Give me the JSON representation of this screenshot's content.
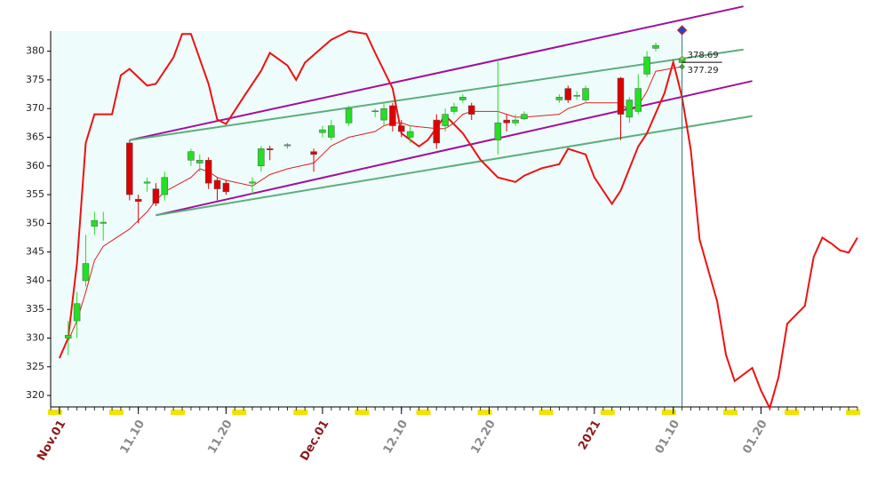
{
  "chart_data": {
    "type": "candlestick",
    "x": [
      "11.02",
      "11.03",
      "11.04",
      "11.05",
      "11.06",
      "11.09",
      "11.10",
      "11.11",
      "11.12",
      "11.13",
      "11.16",
      "11.17",
      "11.18",
      "11.19",
      "11.20",
      "11.23",
      "11.24",
      "11.25",
      "11.27",
      "11.30",
      "12.01",
      "12.02",
      "12.04",
      "12.07",
      "12.08",
      "12.09",
      "12.10",
      "12.11",
      "12.14",
      "12.15",
      "12.16",
      "12.17",
      "12.18",
      "12.21",
      "12.22",
      "12.23",
      "12.24",
      "12.28",
      "12.29",
      "12.30",
      "12.31",
      "01.04",
      "01.05",
      "01.06",
      "01.07",
      "01.08",
      "01.11"
    ],
    "open": [
      330,
      333,
      340,
      349.5,
      350,
      364,
      354.2,
      357,
      356,
      355,
      361,
      360.5,
      361,
      357.5,
      357,
      357,
      360,
      363,
      363.5,
      362.5,
      365.8,
      365,
      367.5,
      369.5,
      368,
      370.5,
      367,
      365,
      368,
      367,
      369.5,
      371.5,
      370.5,
      364.5,
      368,
      367.5,
      368.2,
      371.5,
      373.5,
      372.2,
      371.5,
      375.3,
      368.5,
      369.5,
      376,
      380.5,
      378
    ],
    "high": [
      333,
      338,
      348,
      352,
      352,
      364.5,
      355,
      358,
      357,
      359,
      363,
      362,
      361.5,
      358,
      357.5,
      358,
      363.5,
      363.5,
      364,
      363,
      367,
      368,
      370.5,
      370,
      371,
      371,
      368,
      367,
      369,
      370,
      371,
      372.5,
      371,
      378.5,
      369,
      369,
      369.5,
      372.5,
      374,
      373,
      374,
      375.5,
      372,
      376,
      380,
      381.5,
      379.5
    ],
    "low": [
      327,
      330,
      339,
      348,
      347,
      354,
      350,
      355.5,
      353,
      354,
      360,
      359,
      356,
      354,
      355,
      355,
      359,
      361,
      363,
      359,
      365,
      364.5,
      367,
      368.5,
      367,
      366,
      365,
      364,
      363,
      366,
      369,
      371,
      368,
      362,
      366,
      367,
      368,
      371,
      371,
      371.5,
      371,
      364.5,
      367.5,
      369,
      375.5,
      380,
      377.5
    ],
    "close": [
      330.5,
      336,
      343,
      350.5,
      350.2,
      355,
      353.8,
      357.2,
      353.5,
      358,
      362.5,
      361,
      357,
      356,
      355.5,
      357.2,
      363,
      362.8,
      363.7,
      362,
      366.3,
      367,
      370,
      369.6,
      370,
      367,
      366,
      366,
      364,
      369,
      370.3,
      372,
      369,
      367.5,
      367.5,
      368,
      369,
      372,
      371.5,
      372.3,
      373.5,
      369,
      371.5,
      373.5,
      379,
      381,
      378.69
    ],
    "up_color": "#22e022",
    "down_color": "#dd0000",
    "ma": {
      "color": "#e02020",
      "values": [
        329.5,
        333,
        338,
        343.5,
        346,
        349,
        350.5,
        352,
        354,
        355.5,
        358,
        359.5,
        359,
        358,
        357.5,
        356.5,
        357.5,
        358.5,
        359.5,
        360.5,
        362,
        363.5,
        365,
        366,
        367,
        367.5,
        367.5,
        367,
        366.5,
        366.5,
        367.5,
        369,
        369.5,
        369.5,
        369,
        368.5,
        368.5,
        369,
        370,
        370.5,
        371,
        371,
        369.5,
        370.5,
        373,
        376.5,
        377.29
      ]
    },
    "oscillator": {
      "color": "#ee1111",
      "x": [
        "11.01",
        "11.02",
        "11.03",
        "11.04",
        "11.05",
        "11.06",
        "11.07",
        "11.08",
        "11.09",
        "11.11",
        "11.12",
        "11.14",
        "11.15",
        "11.16",
        "11.18",
        "11.19",
        "11.20",
        "11.22",
        "11.24",
        "11.25",
        "11.27",
        "11.28",
        "11.29",
        "12.01",
        "12.02",
        "12.04",
        "12.06",
        "12.07",
        "12.09",
        "12.10",
        "12.12",
        "12.13",
        "12.15",
        "12.17",
        "12.19",
        "12.21",
        "12.23",
        "12.24",
        "12.26",
        "12.28",
        "12.29",
        "12.31",
        "01.01",
        "01.03",
        "01.04",
        "01.06",
        "01.07",
        "01.09",
        "01.10",
        "01.11",
        "01.12",
        "01.13",
        "01.15",
        "01.16",
        "01.17",
        "01.19",
        "01.20",
        "01.21",
        "01.22",
        "01.23",
        "01.25",
        "01.26",
        "01.27",
        "01.28",
        "01.29",
        "01.30",
        "01.31"
      ],
      "values": [
        326.5,
        330,
        343,
        364,
        369,
        369,
        369,
        375.8,
        376.9,
        374,
        374.3,
        378.9,
        383,
        383,
        374.3,
        368.1,
        367.3,
        372,
        376.6,
        379.7,
        377.5,
        375,
        378,
        380.7,
        382,
        383.5,
        383,
        379.7,
        373.5,
        365.7,
        363.4,
        364.5,
        368.8,
        365.7,
        361.1,
        358,
        357.2,
        358.3,
        359.6,
        360.3,
        363,
        362,
        358,
        353.4,
        355.7,
        363.4,
        365.7,
        372.7,
        378.1,
        372,
        362.7,
        347.2,
        336.4,
        327.1,
        322.5,
        324.8,
        320.9,
        317.8,
        323.2,
        332.5,
        335.6,
        344.1,
        347.5,
        346.5,
        345.3,
        344.9,
        347.5
      ]
    },
    "channels": [
      {
        "color": "#a0109a",
        "x": [
          "11.09",
          "01.18"
        ],
        "values": [
          364.5,
          387.8
        ]
      },
      {
        "color": "#a0109a",
        "x": [
          "11.12",
          "01.19"
        ],
        "values": [
          351.4,
          374.8
        ]
      },
      {
        "color": "#5cae7c",
        "x": [
          "11.09",
          "01.18"
        ],
        "values": [
          364.5,
          380.3
        ]
      },
      {
        "color": "#5cae7c",
        "x": [
          "11.12",
          "01.19"
        ],
        "values": [
          351.4,
          368.7
        ]
      }
    ],
    "price_labels": [
      378.69,
      377.29
    ],
    "xlim": [
      "10.31",
      "01.31"
    ],
    "xticks": [
      {
        "value": "11.01",
        "label": "Nov.01"
      },
      {
        "value": "11.10",
        "label": "11.10"
      },
      {
        "value": "11.20",
        "label": "11.20"
      },
      {
        "value": "12.01",
        "label": "Dec.01"
      },
      {
        "value": "12.10",
        "label": "12.10"
      },
      {
        "value": "12.20",
        "label": "12.20"
      },
      {
        "value": "01.01",
        "label": "2021"
      },
      {
        "value": "01.10",
        "label": "01.10"
      },
      {
        "value": "01.20",
        "label": "01.20"
      }
    ],
    "ylim": [
      318,
      383.5
    ],
    "yticks": [
      320,
      325,
      330,
      335,
      340,
      345,
      350,
      355,
      360,
      365,
      370,
      375,
      380
    ]
  }
}
